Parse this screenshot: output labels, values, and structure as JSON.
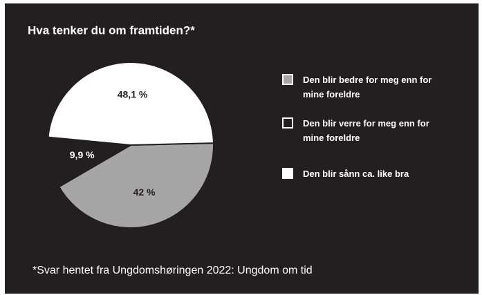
{
  "chart_data": {
    "type": "pie",
    "title": "Hva tenker du om framtiden?*",
    "footnote": "*Svar hentet fra Ungdomshøringen 2022: Ungdom om tid",
    "categories": [
      "Den blir bedre for meg enn for mine foreldre",
      "Den blir verre for meg enn for mine foreldre",
      "Den blir sånn ca. like bra"
    ],
    "values": [
      42,
      9.9,
      48.1
    ],
    "value_labels": [
      "42 %",
      "9,9 %",
      "48,1 %"
    ],
    "colors": [
      "#a7a6a6",
      "#231f20",
      "#ffffff"
    ]
  }
}
